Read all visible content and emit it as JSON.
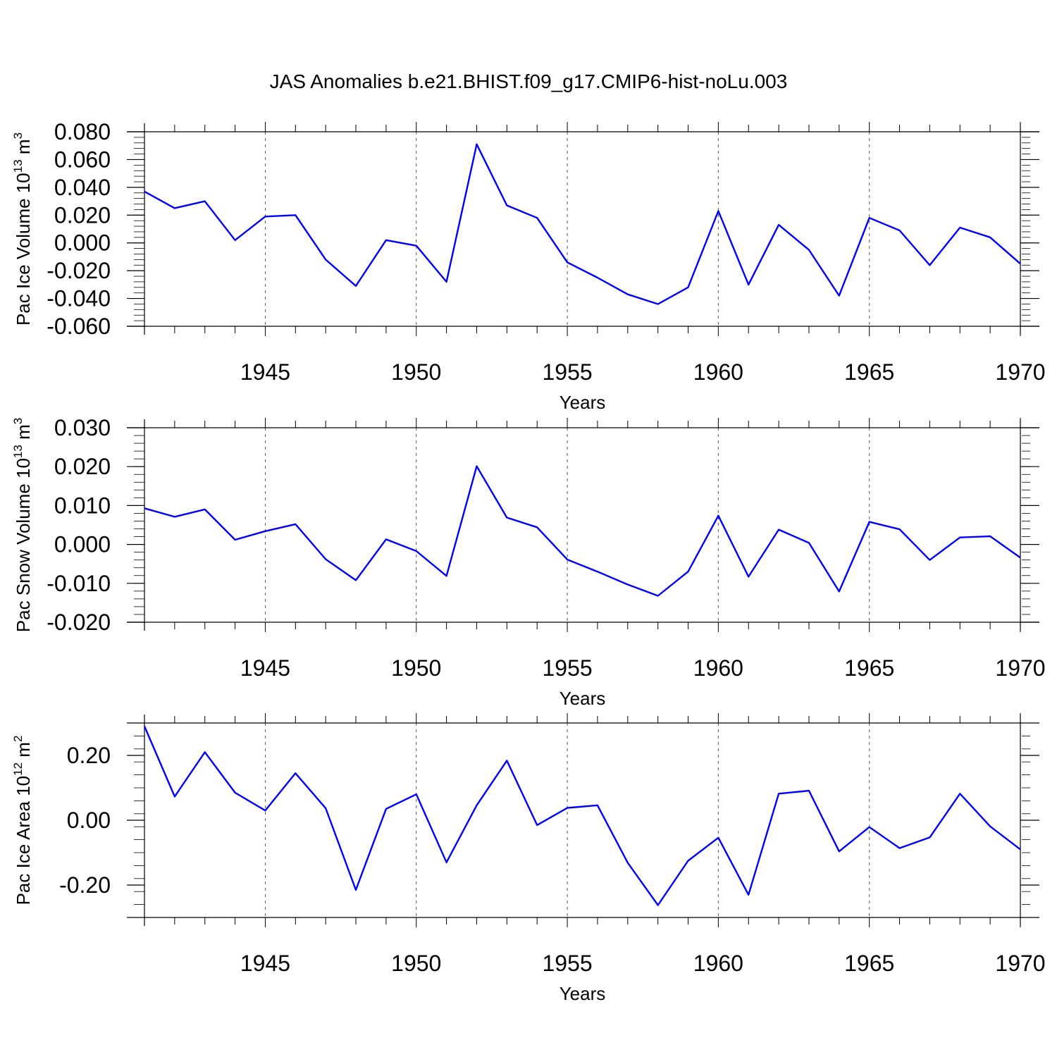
{
  "title": "JAS Anomalies b.e21.BHIST.f09_g17.CMIP6-hist-noLu.003",
  "chart_data": [
    {
      "type": "line",
      "ylabel": {
        "prefix": "Pac Ice Volume 10",
        "exp1": "13",
        "mid": " m",
        "exp2": "3"
      },
      "xlabel": "Years",
      "xlim": [
        1941,
        1970
      ],
      "ylim": [
        -0.06,
        0.08
      ],
      "ytick_values": [
        -0.06,
        -0.04,
        -0.02,
        0.0,
        0.02,
        0.04,
        0.06,
        0.08
      ],
      "ytick_labels": [
        "-0.060",
        "-0.040",
        "-0.020",
        "0.000",
        "0.020",
        "0.040",
        "0.060",
        "0.080"
      ],
      "xtick_values": [
        1945,
        1950,
        1955,
        1960,
        1965,
        1970
      ],
      "xtick_labels": [
        "1945",
        "1950",
        "1955",
        "1960",
        "1965",
        "1970"
      ],
      "grid": "vertical dashed at major x ticks",
      "line_color": "#0000ff",
      "series": [
        {
          "x": [
            1941,
            1942,
            1943,
            1944,
            1945,
            1946,
            1947,
            1948,
            1949,
            1950,
            1951,
            1952,
            1953,
            1954,
            1955,
            1956,
            1957,
            1958,
            1959,
            1960,
            1961,
            1962,
            1963,
            1964,
            1965,
            1966,
            1967,
            1968,
            1969,
            1970
          ],
          "values": [
            0.037,
            0.025,
            0.03,
            0.002,
            0.019,
            0.02,
            -0.012,
            -0.031,
            0.002,
            -0.002,
            -0.028,
            0.071,
            0.027,
            0.018,
            -0.014,
            -0.025,
            -0.037,
            -0.044,
            -0.032,
            0.023,
            -0.03,
            0.013,
            -0.005,
            -0.038,
            0.018,
            0.009,
            -0.016,
            0.011,
            0.004,
            -0.015
          ]
        }
      ]
    },
    {
      "type": "line",
      "ylabel": {
        "prefix": "Pac Snow Volume 10",
        "exp1": "13",
        "mid": " m",
        "exp2": "3"
      },
      "xlabel": "Years",
      "xlim": [
        1941,
        1970
      ],
      "ylim": [
        -0.02,
        0.03
      ],
      "ytick_values": [
        -0.02,
        -0.01,
        0.0,
        0.01,
        0.02,
        0.03
      ],
      "ytick_labels": [
        "-0.020",
        "-0.010",
        "0.000",
        "0.010",
        "0.020",
        "0.030"
      ],
      "xtick_values": [
        1945,
        1950,
        1955,
        1960,
        1965,
        1970
      ],
      "xtick_labels": [
        "1945",
        "1950",
        "1955",
        "1960",
        "1965",
        "1970"
      ],
      "grid": "vertical dashed at major x ticks",
      "line_color": "#0000ff",
      "series": [
        {
          "x": [
            1941,
            1942,
            1943,
            1944,
            1945,
            1946,
            1947,
            1948,
            1949,
            1950,
            1951,
            1952,
            1953,
            1954,
            1955,
            1956,
            1957,
            1958,
            1959,
            1960,
            1961,
            1962,
            1963,
            1964,
            1965,
            1966,
            1967,
            1968,
            1969,
            1970
          ],
          "values": [
            0.0093,
            0.0071,
            0.009,
            0.0012,
            0.0034,
            0.0052,
            -0.0038,
            -0.0092,
            0.0013,
            -0.0017,
            -0.0081,
            0.0201,
            0.0069,
            0.0044,
            -0.0039,
            -0.007,
            -0.0103,
            -0.0132,
            -0.007,
            0.0074,
            -0.0083,
            0.0038,
            0.0004,
            -0.0121,
            0.0058,
            0.0039,
            -0.004,
            0.0018,
            0.0021,
            -0.0034
          ]
        }
      ]
    },
    {
      "type": "line",
      "ylabel": {
        "prefix": "Pac Ice Area 10",
        "exp1": "12",
        "mid": " m",
        "exp2": "2"
      },
      "xlabel": "Years",
      "xlim": [
        1941,
        1970
      ],
      "ylim": [
        -0.3,
        0.3
      ],
      "ytick_values": [
        -0.2,
        0.0,
        0.2
      ],
      "ytick_labels": [
        "-0.20",
        "0.00",
        "0.20"
      ],
      "xtick_values": [
        1945,
        1950,
        1955,
        1960,
        1965,
        1970
      ],
      "xtick_labels": [
        "1945",
        "1950",
        "1955",
        "1960",
        "1965",
        "1970"
      ],
      "grid": "vertical dashed at major x ticks",
      "line_color": "#0000ff",
      "series": [
        {
          "x": [
            1941,
            1942,
            1943,
            1944,
            1945,
            1946,
            1947,
            1948,
            1949,
            1950,
            1951,
            1952,
            1953,
            1954,
            1955,
            1956,
            1957,
            1958,
            1959,
            1960,
            1961,
            1962,
            1963,
            1964,
            1965,
            1966,
            1967,
            1968,
            1969,
            1970
          ],
          "values": [
            0.29,
            0.073,
            0.21,
            0.085,
            0.03,
            0.145,
            0.037,
            -0.215,
            0.035,
            0.08,
            -0.13,
            0.046,
            0.184,
            -0.015,
            0.038,
            0.046,
            -0.131,
            -0.262,
            -0.125,
            -0.054,
            -0.23,
            0.082,
            0.091,
            -0.096,
            -0.021,
            -0.086,
            -0.053,
            0.082,
            -0.019,
            -0.09
          ]
        }
      ]
    }
  ]
}
